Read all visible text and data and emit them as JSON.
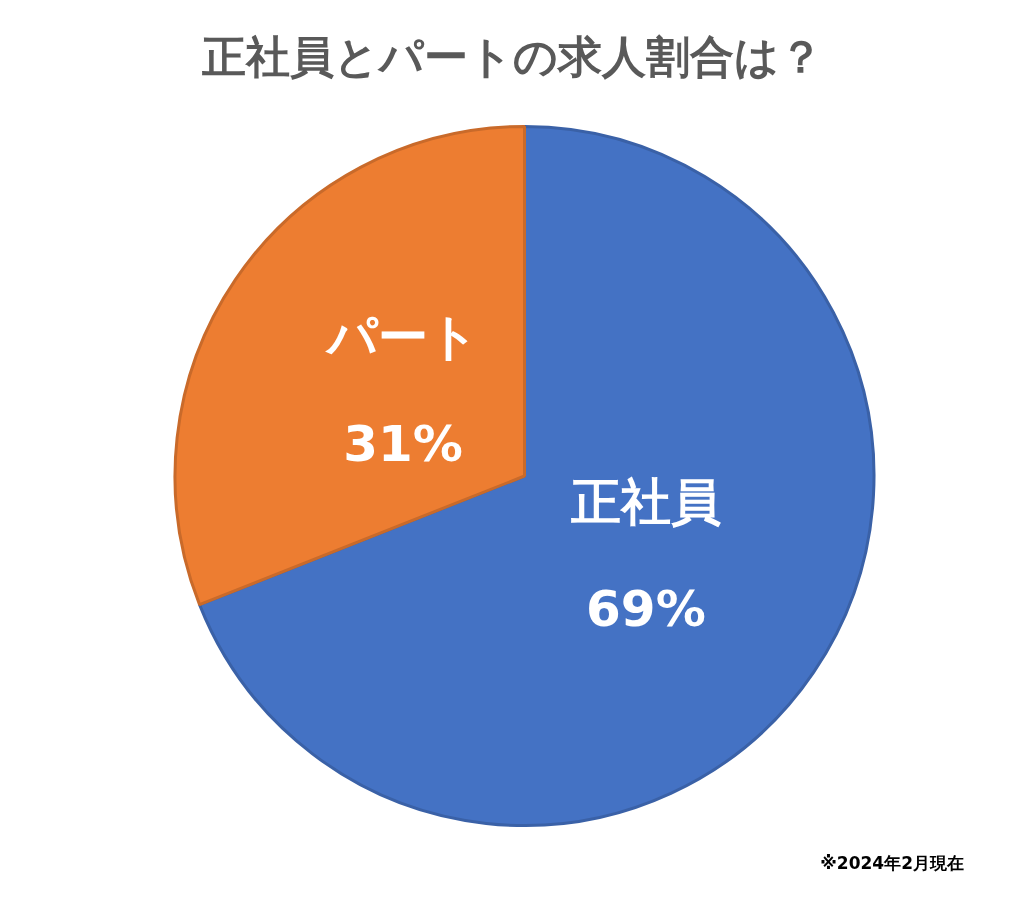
{
  "chart_data": {
    "type": "pie",
    "title": "正社員とパートの求人割合は？",
    "categories": [
      "正社員",
      "パート"
    ],
    "values": [
      69,
      31
    ],
    "colors": [
      "#4472c4",
      "#ed7d31"
    ],
    "value_labels": [
      "69%",
      "31%"
    ],
    "annotations": [
      "※2024年2月現在"
    ]
  }
}
